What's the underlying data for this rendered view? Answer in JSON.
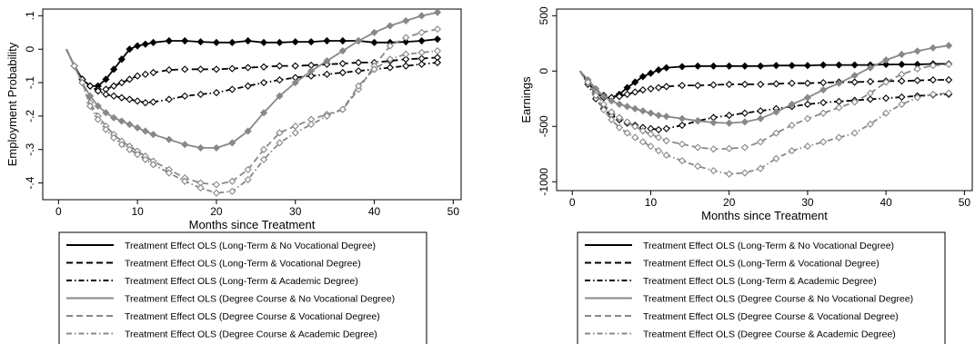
{
  "chart_data": [
    {
      "type": "line",
      "title": "",
      "xlabel": "Months since Treatment",
      "ylabel": "Employment Probability",
      "xlim": [
        -2,
        51
      ],
      "ylim": [
        -0.45,
        0.12
      ],
      "xticks": [
        0,
        10,
        20,
        30,
        40,
        50
      ],
      "xtick_labels": [
        "0",
        "10",
        "20",
        "30",
        "40",
        "50"
      ],
      "yticks": [
        -0.4,
        -0.3,
        -0.2,
        -0.1,
        0,
        0.1
      ],
      "ytick_labels": [
        "-.4",
        "-.3",
        "-.2",
        "-.1",
        "0",
        ".1"
      ],
      "grid": false,
      "legend_position": "bottom",
      "series": [
        {
          "name": "Treatment Effect OLS (Long-Term & No Vocational Degree)",
          "style": "solid",
          "color": "#000000",
          "marker": "filled",
          "x": [
            1,
            2,
            3,
            4,
            5,
            6,
            7,
            8,
            9,
            10,
            11,
            12,
            14,
            16,
            18,
            20,
            22,
            24,
            26,
            28,
            30,
            32,
            34,
            36,
            38,
            40,
            42,
            44,
            46,
            48
          ],
          "y": [
            0,
            -0.05,
            -0.09,
            -0.11,
            -0.11,
            -0.09,
            -0.06,
            -0.03,
            0.0,
            0.01,
            0.015,
            0.02,
            0.025,
            0.025,
            0.022,
            0.02,
            0.02,
            0.025,
            0.02,
            0.02,
            0.022,
            0.022,
            0.025,
            0.025,
            0.025,
            0.02,
            0.02,
            0.022,
            0.025,
            0.03
          ]
        },
        {
          "name": "Treatment Effect OLS (Long-Term  & Vocational Degree)",
          "style": "dashed",
          "color": "#000000",
          "marker": "hollow",
          "x": [
            1,
            2,
            3,
            4,
            5,
            6,
            7,
            8,
            9,
            10,
            11,
            12,
            14,
            16,
            18,
            20,
            22,
            24,
            26,
            28,
            30,
            32,
            34,
            36,
            38,
            40,
            42,
            44,
            46,
            48
          ],
          "y": [
            0,
            -0.05,
            -0.09,
            -0.11,
            -0.12,
            -0.12,
            -0.11,
            -0.1,
            -0.09,
            -0.08,
            -0.075,
            -0.07,
            -0.062,
            -0.06,
            -0.06,
            -0.06,
            -0.058,
            -0.055,
            -0.053,
            -0.05,
            -0.05,
            -0.048,
            -0.045,
            -0.043,
            -0.04,
            -0.04,
            -0.035,
            -0.03,
            -0.028,
            -0.025
          ]
        },
        {
          "name": "Treatment Effect OLS (Long-Term  & Academic Degree)",
          "style": "dashdot",
          "color": "#000000",
          "marker": "hollow",
          "x": [
            1,
            2,
            3,
            4,
            5,
            6,
            7,
            8,
            9,
            10,
            11,
            12,
            14,
            16,
            18,
            20,
            22,
            24,
            26,
            28,
            30,
            32,
            34,
            36,
            38,
            40,
            42,
            44,
            46,
            48
          ],
          "y": [
            0,
            -0.05,
            -0.09,
            -0.11,
            -0.125,
            -0.135,
            -0.14,
            -0.145,
            -0.15,
            -0.155,
            -0.16,
            -0.158,
            -0.15,
            -0.14,
            -0.135,
            -0.13,
            -0.12,
            -0.11,
            -0.1,
            -0.092,
            -0.085,
            -0.08,
            -0.075,
            -0.07,
            -0.065,
            -0.06,
            -0.055,
            -0.05,
            -0.045,
            -0.04
          ]
        },
        {
          "name": "Treatment Effect OLS (Degree Course & No Vocational Degree)",
          "style": "solid",
          "color": "#888888",
          "marker": "filled",
          "x": [
            1,
            2,
            3,
            4,
            5,
            6,
            7,
            8,
            9,
            10,
            11,
            12,
            14,
            16,
            18,
            20,
            22,
            24,
            26,
            28,
            30,
            32,
            34,
            36,
            38,
            40,
            42,
            44,
            46,
            48
          ],
          "y": [
            0,
            -0.05,
            -0.1,
            -0.14,
            -0.17,
            -0.19,
            -0.205,
            -0.215,
            -0.225,
            -0.235,
            -0.245,
            -0.255,
            -0.27,
            -0.285,
            -0.295,
            -0.295,
            -0.28,
            -0.245,
            -0.19,
            -0.14,
            -0.1,
            -0.065,
            -0.035,
            -0.005,
            0.025,
            0.05,
            0.07,
            0.085,
            0.1,
            0.11
          ]
        },
        {
          "name": "Treatment Effect OLS (Degree Course & Vocational Degree)",
          "style": "dashed",
          "color": "#888888",
          "marker": "hollow",
          "x": [
            1,
            2,
            3,
            4,
            5,
            6,
            7,
            8,
            9,
            10,
            11,
            12,
            14,
            16,
            18,
            20,
            22,
            24,
            26,
            28,
            30,
            32,
            34,
            36,
            38,
            40,
            42,
            44,
            46,
            48
          ],
          "y": [
            0,
            -0.05,
            -0.1,
            -0.16,
            -0.2,
            -0.23,
            -0.255,
            -0.275,
            -0.29,
            -0.305,
            -0.32,
            -0.335,
            -0.36,
            -0.385,
            -0.4,
            -0.405,
            -0.395,
            -0.36,
            -0.3,
            -0.25,
            -0.23,
            -0.21,
            -0.195,
            -0.18,
            -0.12,
            -0.05,
            0.01,
            0.035,
            0.05,
            0.06
          ]
        },
        {
          "name": "Treatment Effect OLS (Degree Course & Academic Degree)",
          "style": "dashdot",
          "color": "#888888",
          "marker": "hollow",
          "x": [
            1,
            2,
            3,
            4,
            5,
            6,
            7,
            8,
            9,
            10,
            11,
            12,
            14,
            16,
            18,
            20,
            22,
            24,
            26,
            28,
            30,
            32,
            34,
            36,
            38,
            40,
            42,
            44,
            46,
            48
          ],
          "y": [
            0,
            -0.05,
            -0.1,
            -0.17,
            -0.21,
            -0.24,
            -0.265,
            -0.285,
            -0.3,
            -0.315,
            -0.33,
            -0.345,
            -0.37,
            -0.395,
            -0.415,
            -0.43,
            -0.425,
            -0.39,
            -0.33,
            -0.28,
            -0.25,
            -0.225,
            -0.2,
            -0.18,
            -0.11,
            -0.06,
            -0.03,
            -0.015,
            -0.01,
            -0.005
          ]
        }
      ]
    },
    {
      "type": "line",
      "title": "",
      "xlabel": "Months since Treatment",
      "ylabel": "Earnings",
      "xlim": [
        -2,
        51
      ],
      "ylim": [
        -1080,
        560
      ],
      "xticks": [
        0,
        10,
        20,
        30,
        40,
        50
      ],
      "xtick_labels": [
        "0",
        "10",
        "20",
        "30",
        "40",
        "50"
      ],
      "yticks": [
        -1000,
        -500,
        0,
        500
      ],
      "ytick_labels": [
        "-1000",
        "-500",
        "0",
        "500"
      ],
      "grid": false,
      "legend_position": "bottom",
      "series": [
        {
          "name": "Treatment Effect OLS (Long-Term & No Vocational Degree)",
          "style": "solid",
          "color": "#000000",
          "marker": "filled",
          "x": [
            1,
            2,
            3,
            4,
            5,
            6,
            7,
            8,
            9,
            10,
            11,
            12,
            14,
            16,
            18,
            20,
            22,
            24,
            26,
            28,
            30,
            32,
            34,
            36,
            38,
            40,
            42,
            44,
            46,
            48
          ],
          "y": [
            0,
            -100,
            -200,
            -240,
            -240,
            -210,
            -150,
            -100,
            -50,
            -20,
            10,
            30,
            40,
            45,
            45,
            45,
            45,
            45,
            50,
            50,
            50,
            55,
            55,
            55,
            55,
            60,
            60,
            60,
            65,
            65
          ]
        },
        {
          "name": "Treatment Effect OLS (Long-Term  & Vocational Degree)",
          "style": "dashed",
          "color": "#000000",
          "marker": "hollow",
          "x": [
            1,
            2,
            3,
            4,
            5,
            6,
            7,
            8,
            9,
            10,
            11,
            12,
            14,
            16,
            18,
            20,
            22,
            24,
            26,
            28,
            30,
            32,
            34,
            36,
            38,
            40,
            42,
            44,
            46,
            48
          ],
          "y": [
            0,
            -100,
            -180,
            -220,
            -240,
            -230,
            -210,
            -190,
            -170,
            -160,
            -150,
            -140,
            -130,
            -130,
            -125,
            -120,
            -120,
            -120,
            -115,
            -110,
            -110,
            -105,
            -100,
            -100,
            -95,
            -90,
            -90,
            -85,
            -80,
            -80
          ]
        },
        {
          "name": "Treatment Effect OLS (Long-Term  & Academic Degree)",
          "style": "dashdot",
          "color": "#000000",
          "marker": "hollow",
          "x": [
            1,
            2,
            3,
            4,
            5,
            6,
            7,
            8,
            9,
            10,
            11,
            12,
            14,
            16,
            18,
            20,
            22,
            24,
            26,
            28,
            30,
            32,
            34,
            36,
            38,
            40,
            42,
            44,
            46,
            48
          ],
          "y": [
            0,
            -120,
            -250,
            -340,
            -400,
            -440,
            -470,
            -490,
            -510,
            -520,
            -530,
            -520,
            -490,
            -450,
            -420,
            -400,
            -380,
            -360,
            -340,
            -320,
            -300,
            -285,
            -275,
            -265,
            -255,
            -245,
            -235,
            -225,
            -215,
            -210
          ]
        },
        {
          "name": "Treatment Effect OLS (Degree Course & No Vocational Degree)",
          "style": "solid",
          "color": "#888888",
          "marker": "filled",
          "x": [
            1,
            2,
            3,
            4,
            5,
            6,
            7,
            8,
            9,
            10,
            11,
            12,
            14,
            16,
            18,
            20,
            22,
            24,
            26,
            28,
            30,
            32,
            34,
            36,
            38,
            40,
            42,
            44,
            46,
            48
          ],
          "y": [
            0,
            -80,
            -160,
            -230,
            -270,
            -300,
            -320,
            -340,
            -360,
            -380,
            -400,
            -410,
            -430,
            -450,
            -465,
            -470,
            -460,
            -430,
            -370,
            -300,
            -240,
            -170,
            -110,
            -40,
            30,
            100,
            150,
            180,
            210,
            230
          ]
        },
        {
          "name": "Treatment Effect OLS (Degree Course & Vocational Degree)",
          "style": "dashed",
          "color": "#888888",
          "marker": "hollow",
          "x": [
            1,
            2,
            3,
            4,
            5,
            6,
            7,
            8,
            9,
            10,
            11,
            12,
            14,
            16,
            18,
            20,
            22,
            24,
            26,
            28,
            30,
            32,
            34,
            36,
            38,
            40,
            42,
            44,
            46,
            48
          ],
          "y": [
            0,
            -100,
            -200,
            -300,
            -370,
            -420,
            -460,
            -500,
            -540,
            -570,
            -600,
            -630,
            -660,
            -690,
            -705,
            -700,
            -690,
            -640,
            -560,
            -490,
            -430,
            -380,
            -330,
            -280,
            -200,
            -100,
            -30,
            20,
            50,
            60
          ]
        },
        {
          "name": "Treatment Effect OLS (Degree Course & Academic Degree)",
          "style": "dashdot",
          "color": "#888888",
          "marker": "hollow",
          "x": [
            1,
            2,
            3,
            4,
            5,
            6,
            7,
            8,
            9,
            10,
            11,
            12,
            14,
            16,
            18,
            20,
            22,
            24,
            26,
            28,
            30,
            32,
            34,
            36,
            38,
            40,
            42,
            44,
            46,
            48
          ],
          "y": [
            0,
            -100,
            -220,
            -350,
            -440,
            -510,
            -560,
            -600,
            -640,
            -680,
            -720,
            -760,
            -810,
            -860,
            -900,
            -930,
            -920,
            -880,
            -790,
            -720,
            -680,
            -640,
            -600,
            -560,
            -480,
            -380,
            -300,
            -240,
            -210,
            -200
          ]
        }
      ]
    }
  ]
}
